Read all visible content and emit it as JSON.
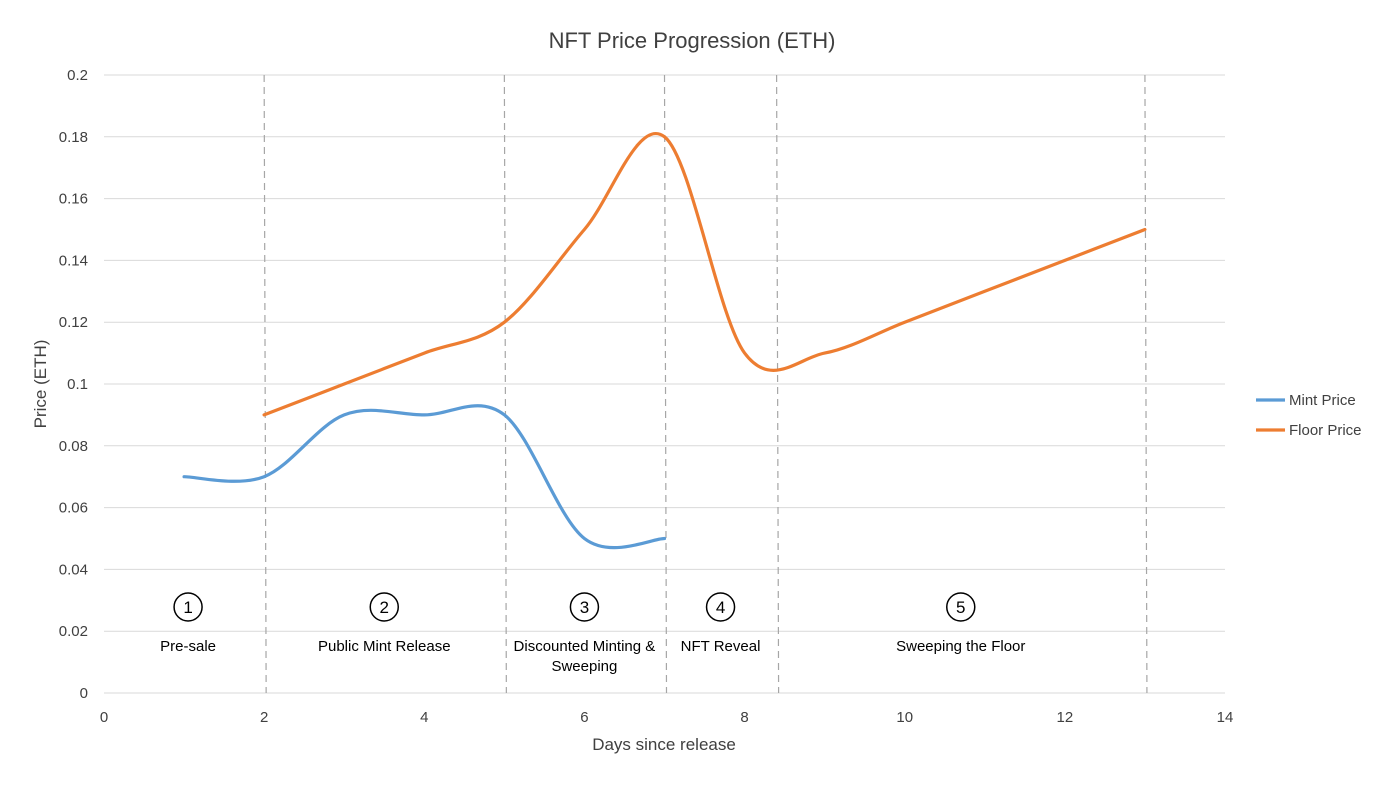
{
  "chart_data": {
    "type": "line",
    "title": "NFT Price Progression (ETH)",
    "xlabel": "Days since release",
    "ylabel": "Price (ETH)",
    "xlim": [
      0,
      14
    ],
    "ylim": [
      0,
      0.2
    ],
    "x_ticks": [
      "0",
      "2",
      "4",
      "6",
      "8",
      "10",
      "12",
      "14"
    ],
    "y_ticks": [
      "0",
      "0.02",
      "0.04",
      "0.06",
      "0.08",
      "0.1",
      "0.12",
      "0.14",
      "0.16",
      "0.18",
      "0.2"
    ],
    "grid": true,
    "smooth": true,
    "legend_position": "right",
    "series": [
      {
        "name": "Mint Price",
        "color": "#5b9bd5",
        "x": [
          1,
          2,
          3,
          4,
          5,
          6,
          7
        ],
        "y": [
          0.07,
          0.07,
          0.09,
          0.09,
          0.09,
          0.05,
          0.05
        ]
      },
      {
        "name": "Floor Price",
        "color": "#ed7d31",
        "x": [
          2,
          3,
          4,
          5,
          6,
          7,
          8,
          9,
          10,
          11,
          12,
          13
        ],
        "y": [
          0.09,
          0.1,
          0.11,
          0.12,
          0.15,
          0.18,
          0.11,
          0.11,
          0.12,
          0.13,
          0.14,
          0.15
        ]
      }
    ],
    "phase_dividers": [
      2,
      5,
      7,
      8.4,
      13
    ],
    "phases": [
      {
        "number": "1",
        "label": "Pre-sale",
        "x": 1.05
      },
      {
        "number": "2",
        "label": "Public Mint Release",
        "x": 3.5
      },
      {
        "number": "3",
        "label": "Discounted Minting &",
        "label2": "Sweeping",
        "x": 6.0
      },
      {
        "number": "4",
        "label": "NFT Reveal",
        "x": 7.7
      },
      {
        "number": "5",
        "label": "Sweeping the Floor",
        "x": 10.7
      }
    ]
  }
}
